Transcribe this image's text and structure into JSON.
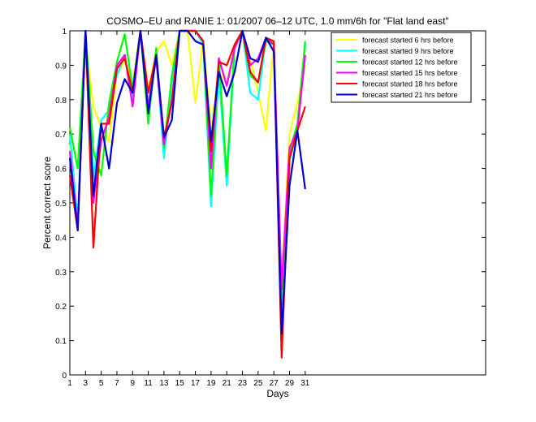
{
  "chart_data": {
    "type": "line",
    "title": "COSMO–EU and RANIE 1: 01/2007 06–12 UTC, 1.0 mm/6h for \"Flat land east\"",
    "xlabel": "Days",
    "ylabel": "Percent correct score",
    "xlim": [
      1,
      54
    ],
    "ylim": [
      0,
      1
    ],
    "x_ticks": [
      1,
      3,
      5,
      7,
      9,
      11,
      13,
      15,
      17,
      19,
      21,
      23,
      25,
      27,
      29,
      31
    ],
    "y_ticks": [
      0,
      0.1,
      0.2,
      0.3,
      0.4,
      0.5,
      0.6,
      0.7,
      0.8,
      0.9,
      1
    ],
    "legend_position": "top-right",
    "grid": false,
    "x": [
      1,
      2,
      3,
      4,
      5,
      6,
      7,
      8,
      9,
      10,
      11,
      12,
      13,
      14,
      15,
      16,
      17,
      18,
      19,
      20,
      21,
      22,
      23,
      24,
      25,
      26,
      27,
      28,
      29,
      30,
      31
    ],
    "series": [
      {
        "name": "forecast started 6 hrs before",
        "color": "#ffff00",
        "values": [
          0.67,
          0.44,
          0.97,
          0.78,
          0.72,
          0.68,
          0.88,
          0.91,
          0.85,
          1.0,
          0.83,
          0.94,
          0.97,
          0.9,
          1.0,
          1.0,
          0.79,
          0.97,
          0.72,
          0.88,
          0.85,
          0.95,
          1.0,
          0.92,
          0.82,
          0.71,
          0.97,
          0.26,
          0.7,
          0.79,
          0.9
        ]
      },
      {
        "name": "forecast started 9 hrs before",
        "color": "#00ffff",
        "values": [
          0.7,
          0.45,
          1.0,
          0.57,
          0.74,
          0.77,
          0.87,
          0.93,
          0.8,
          1.0,
          0.79,
          0.93,
          0.63,
          0.85,
          1.0,
          1.0,
          1.0,
          0.96,
          0.49,
          0.88,
          0.55,
          0.95,
          1.0,
          0.82,
          0.8,
          0.98,
          0.94,
          0.21,
          0.62,
          0.71,
          0.96
        ]
      },
      {
        "name": "forecast started 12 hrs before",
        "color": "#00ff00",
        "values": [
          0.72,
          0.6,
          1.0,
          0.65,
          0.58,
          0.79,
          0.91,
          0.99,
          0.83,
          1.0,
          0.73,
          0.95,
          0.66,
          0.87,
          1.0,
          1.0,
          1.0,
          0.97,
          0.52,
          0.92,
          0.58,
          0.96,
          1.0,
          0.87,
          0.85,
          0.97,
          0.96,
          0.15,
          0.65,
          0.73,
          0.97
        ]
      },
      {
        "name": "forecast started 15 hrs before",
        "color": "#ff00ff",
        "values": [
          0.65,
          0.43,
          1.0,
          0.5,
          0.68,
          0.75,
          0.9,
          0.93,
          0.78,
          1.0,
          0.78,
          0.92,
          0.67,
          0.8,
          1.0,
          1.0,
          1.0,
          0.97,
          0.6,
          0.92,
          0.84,
          0.95,
          1.0,
          0.9,
          0.92,
          0.98,
          0.96,
          0.25,
          0.66,
          0.71,
          0.93
        ]
      },
      {
        "name": "forecast started 18 hrs before",
        "color": "#ff0000",
        "values": [
          0.58,
          0.42,
          1.0,
          0.37,
          0.73,
          0.73,
          0.89,
          0.92,
          0.82,
          1.0,
          0.82,
          0.93,
          0.69,
          0.79,
          1.0,
          1.0,
          1.0,
          0.97,
          0.65,
          0.91,
          0.9,
          0.96,
          1.0,
          0.88,
          0.85,
          0.98,
          0.97,
          0.05,
          0.63,
          0.71,
          0.78
        ]
      },
      {
        "name": "forecast started 21 hrs before",
        "color": "#0000cc",
        "values": [
          0.63,
          0.42,
          1.0,
          0.52,
          0.73,
          0.6,
          0.79,
          0.86,
          0.82,
          1.0,
          0.76,
          0.93,
          0.69,
          0.74,
          1.0,
          1.0,
          0.97,
          0.96,
          0.68,
          0.88,
          0.81,
          0.88,
          1.0,
          0.92,
          0.91,
          0.98,
          0.94,
          0.12,
          0.55,
          0.71,
          0.54
        ]
      }
    ]
  }
}
